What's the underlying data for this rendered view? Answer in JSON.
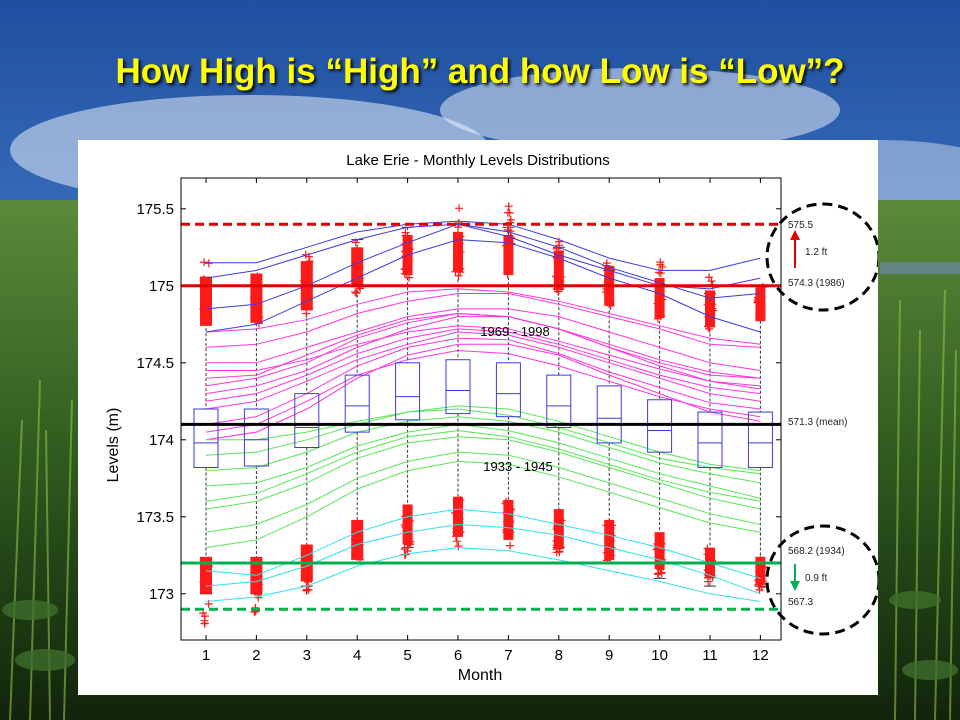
{
  "slide": {
    "title": "How High is “High” and how Low is “Low”?"
  },
  "colors": {
    "title": "#ffff00",
    "high": "#e00000",
    "low": "#00b050",
    "mean": "#000000",
    "blue": "#3a3adf",
    "magenta": "#ff33dd",
    "green": "#55e855",
    "cyan": "#33e0e8"
  },
  "chart_data": {
    "type": "box",
    "title": "Lake Erie - Monthly Levels Distributions",
    "xlabel": "Month",
    "ylabel": "Levels (m)",
    "categories": [
      "1",
      "2",
      "3",
      "4",
      "5",
      "6",
      "7",
      "8",
      "9",
      "10",
      "11",
      "12"
    ],
    "ylim": [
      172.7,
      175.7
    ],
    "yticks": [
      173,
      173.5,
      174,
      174.5,
      175,
      175.5
    ],
    "ytick_labels": [
      "173",
      "173.5",
      "174",
      "174.5",
      "175",
      "175.5"
    ],
    "box": {
      "q1": [
        173.82,
        173.83,
        173.95,
        174.05,
        174.13,
        174.17,
        174.15,
        174.08,
        173.98,
        173.92,
        173.82,
        173.82
      ],
      "q3": [
        174.2,
        174.2,
        174.3,
        174.42,
        174.5,
        174.52,
        174.5,
        174.42,
        174.35,
        174.26,
        174.18,
        174.18
      ],
      "median": [
        173.98,
        174.0,
        174.08,
        174.22,
        174.28,
        174.32,
        174.3,
        174.22,
        174.14,
        174.06,
        173.98,
        173.98
      ],
      "whisker_low": [
        173.0,
        173.0,
        173.05,
        173.2,
        173.3,
        173.4,
        173.4,
        173.3,
        173.2,
        173.1,
        173.05,
        173.05
      ],
      "whisker_high": [
        175.05,
        175.05,
        175.15,
        175.3,
        175.38,
        175.4,
        175.38,
        175.25,
        175.1,
        175.0,
        174.95,
        175.0
      ]
    },
    "outliers_high": {
      "center": [
        174.9,
        174.92,
        175.0,
        175.12,
        175.2,
        175.22,
        175.2,
        175.1,
        175.0,
        174.92,
        174.85,
        174.88
      ],
      "spread": [
        0.16,
        0.16,
        0.16,
        0.13,
        0.13,
        0.13,
        0.13,
        0.13,
        0.13,
        0.13,
        0.12,
        0.11
      ],
      "max": [
        175.17,
        175.17,
        175.22,
        175.32,
        175.4,
        175.55,
        175.53,
        175.3,
        175.18,
        175.17,
        175.1,
        175.0
      ],
      "min": [
        174.78,
        174.72,
        174.8,
        174.95,
        175.05,
        175.05,
        175.05,
        174.95,
        174.85,
        174.75,
        174.7,
        174.8
      ]
    },
    "outliers_low": {
      "center": [
        173.12,
        173.12,
        173.2,
        173.35,
        173.45,
        173.5,
        173.48,
        173.42,
        173.35,
        173.28,
        173.2,
        173.15
      ],
      "spread": [
        0.12,
        0.12,
        0.12,
        0.13,
        0.13,
        0.13,
        0.13,
        0.13,
        0.13,
        0.12,
        0.1,
        0.09
      ],
      "max": [
        173.25,
        173.25,
        173.3,
        173.45,
        173.55,
        173.62,
        173.6,
        173.52,
        173.45,
        173.38,
        173.3,
        173.25
      ],
      "min": [
        172.8,
        172.85,
        173.02,
        173.22,
        173.25,
        173.3,
        173.3,
        173.25,
        173.2,
        173.1,
        173.05,
        173.02
      ]
    },
    "series_groups": [
      {
        "label": "1969 - 1998",
        "color": "#ff33dd",
        "years": [
          [
            174.5,
            174.5,
            174.6,
            174.7,
            174.8,
            174.85,
            174.85,
            174.8,
            174.7,
            174.6,
            174.5,
            174.45
          ],
          [
            174.3,
            174.35,
            174.45,
            174.6,
            174.72,
            174.8,
            174.8,
            174.72,
            174.6,
            174.48,
            174.38,
            174.33
          ],
          [
            174.6,
            174.62,
            174.7,
            174.82,
            174.9,
            174.95,
            174.95,
            174.88,
            174.8,
            174.72,
            174.62,
            174.6
          ],
          [
            174.2,
            174.25,
            174.38,
            174.52,
            174.62,
            174.7,
            174.68,
            174.6,
            174.5,
            174.4,
            174.3,
            174.25
          ],
          [
            174.4,
            174.42,
            174.55,
            174.68,
            174.78,
            174.82,
            174.8,
            174.72,
            174.6,
            174.5,
            174.42,
            174.4
          ],
          [
            174.0,
            174.05,
            174.2,
            174.4,
            174.55,
            174.62,
            174.62,
            174.55,
            174.42,
            174.3,
            174.18,
            174.12
          ],
          [
            174.1,
            174.15,
            174.3,
            174.48,
            174.6,
            174.66,
            174.65,
            174.56,
            174.44,
            174.34,
            174.24,
            174.2
          ],
          [
            174.7,
            174.72,
            174.78,
            174.88,
            174.96,
            174.98,
            174.96,
            174.9,
            174.82,
            174.74,
            174.66,
            174.62
          ],
          [
            174.25,
            174.3,
            174.42,
            174.56,
            174.66,
            174.72,
            174.7,
            174.62,
            174.52,
            174.42,
            174.34,
            174.3
          ],
          [
            174.45,
            174.45,
            174.52,
            174.62,
            174.7,
            174.74,
            174.72,
            174.64,
            174.55,
            174.46,
            174.38,
            174.35
          ],
          [
            174.05,
            174.1,
            174.25,
            174.42,
            174.52,
            174.58,
            174.56,
            174.48,
            174.38,
            174.28,
            174.2,
            174.15
          ],
          [
            174.35,
            174.4,
            174.5,
            174.66,
            174.76,
            174.82,
            174.8,
            174.72,
            174.62,
            174.52,
            174.44,
            174.4
          ]
        ]
      },
      {
        "label": "1933 - 1945",
        "color": "#55e855",
        "years": [
          [
            173.8,
            173.82,
            173.92,
            174.05,
            174.12,
            174.15,
            174.12,
            174.05,
            173.95,
            173.85,
            173.78,
            173.72
          ],
          [
            173.55,
            173.6,
            173.72,
            173.88,
            173.98,
            174.02,
            174.0,
            173.92,
            173.82,
            173.72,
            173.62,
            173.55
          ],
          [
            174.0,
            174.0,
            174.05,
            174.12,
            174.18,
            174.2,
            174.16,
            174.08,
            173.98,
            173.88,
            173.82,
            173.78
          ],
          [
            173.4,
            173.45,
            173.58,
            173.75,
            173.86,
            173.92,
            173.9,
            173.82,
            173.72,
            173.62,
            173.52,
            173.45
          ],
          [
            173.7,
            173.72,
            173.82,
            173.96,
            174.05,
            174.1,
            174.06,
            173.98,
            173.88,
            173.78,
            173.7,
            173.62
          ],
          [
            173.3,
            173.35,
            173.5,
            173.68,
            173.8,
            173.86,
            173.84,
            173.76,
            173.66,
            173.56,
            173.46,
            173.4
          ],
          [
            173.9,
            173.92,
            174.0,
            174.1,
            174.18,
            174.22,
            174.2,
            174.12,
            174.02,
            173.92,
            173.84,
            173.8
          ],
          [
            173.6,
            173.65,
            173.78,
            173.92,
            174.02,
            174.06,
            174.02,
            173.94,
            173.84,
            173.74,
            173.66,
            173.6
          ]
        ]
      },
      {
        "label": "",
        "color": "#33e0e8",
        "years": [
          [
            173.05,
            173.08,
            173.18,
            173.32,
            173.4,
            173.45,
            173.43,
            173.38,
            173.3,
            173.22,
            173.12,
            173.0
          ],
          [
            172.95,
            172.98,
            173.05,
            173.18,
            173.26,
            173.3,
            173.28,
            173.22,
            173.15,
            173.08,
            173.0,
            172.95
          ],
          [
            173.15,
            173.12,
            173.25,
            173.4,
            173.5,
            173.55,
            173.52,
            173.45,
            173.38,
            173.3,
            173.2,
            173.1
          ]
        ]
      },
      {
        "label": "",
        "color": "#3a3adf",
        "years": [
          [
            175.15,
            175.15,
            175.25,
            175.35,
            175.4,
            175.42,
            175.4,
            175.3,
            175.18,
            175.1,
            175.1,
            175.18
          ],
          [
            174.85,
            174.88,
            175.0,
            175.15,
            175.28,
            175.4,
            175.35,
            175.25,
            175.12,
            175.02,
            174.92,
            174.95
          ],
          [
            174.7,
            174.75,
            174.9,
            175.05,
            175.2,
            175.3,
            175.28,
            175.18,
            175.05,
            174.95,
            174.8,
            174.7
          ],
          [
            175.05,
            175.1,
            175.2,
            175.3,
            175.38,
            175.4,
            175.32,
            175.2,
            175.1,
            175.0,
            174.98,
            175.05
          ]
        ]
      }
    ],
    "reference_lines": [
      {
        "name": "high-limit",
        "y": 175.4,
        "color": "#e00000",
        "style": "dashed"
      },
      {
        "name": "high-1986",
        "y": 175.0,
        "color": "#e00000",
        "style": "solid"
      },
      {
        "name": "mean",
        "y": 174.1,
        "color": "#000000",
        "style": "solid"
      },
      {
        "name": "low-1934",
        "y": 173.2,
        "color": "#00b050",
        "style": "solid"
      },
      {
        "name": "low-limit",
        "y": 172.9,
        "color": "#00b050",
        "style": "dashed"
      }
    ],
    "annotations": {
      "high_top": "575.5",
      "high_delta": "1.2 ft",
      "high_ref": "574.3 (1986)",
      "mean": "571.3 (mean)",
      "low_ref": "568.2 (1934)",
      "low_delta": "0.9 ft",
      "low_bottom": "567.3"
    }
  }
}
